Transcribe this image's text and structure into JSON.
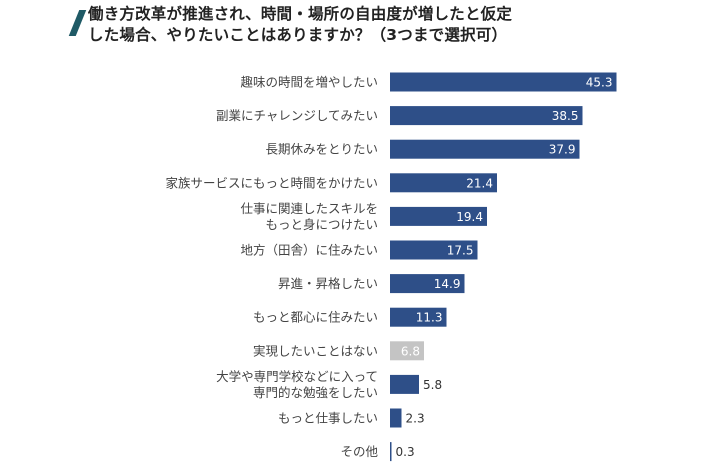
{
  "title_lines": [
    "働き方改革が推進され、時間・場所の自由度が増したと仮定",
    "した場合、やりたいことはありますか？（3つまで選択可）"
  ],
  "colors": {
    "bar": "#2e4f88",
    "bar_muted": "#c4c4c4",
    "accent": "#1f5a66"
  },
  "chart_data": {
    "type": "bar",
    "orientation": "horizontal",
    "title": "働き方改革が推進され、時間・場所の自由度が増したと仮定した場合、やりたいことはありますか？（3つまで選択可）",
    "categories": [
      [
        "趣味の時間を増やしたい"
      ],
      [
        "副業にチャレンジしてみたい"
      ],
      [
        "長期休みをとりたい"
      ],
      [
        "家族サービスにもっと時間をかけたい"
      ],
      [
        "仕事に関連したスキルを",
        "もっと身につけたい"
      ],
      [
        "地方（田舎）に住みたい"
      ],
      [
        "昇進・昇格したい"
      ],
      [
        "もっと都心に住みたい"
      ],
      [
        "実現したいことはない"
      ],
      [
        "大学や専門学校などに入って",
        "専門的な勉強をしたい"
      ],
      [
        "もっと仕事したい"
      ],
      [
        "その他"
      ]
    ],
    "values": [
      45.3,
      38.5,
      37.9,
      21.4,
      19.4,
      17.5,
      14.9,
      11.3,
      6.8,
      5.8,
      2.3,
      0.3
    ],
    "value_labels": [
      "45.3",
      "38.5",
      "37.9",
      "21.4",
      "19.4",
      "17.5",
      "14.9",
      "11.3",
      "6.8",
      "5.8",
      "2.3",
      "0.3"
    ],
    "highlight_muted_index": 8,
    "xlim": [
      0,
      62
    ],
    "xlabel": "",
    "ylabel": "",
    "grid": false,
    "legend": "none"
  }
}
